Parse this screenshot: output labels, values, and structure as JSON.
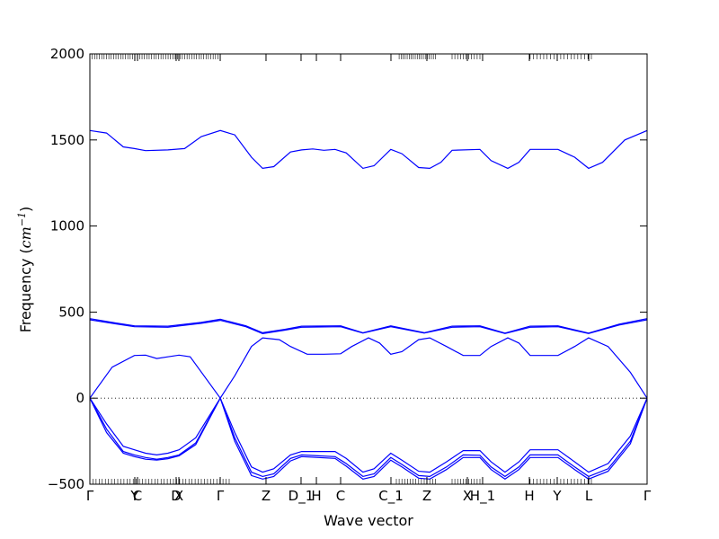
{
  "chart_data": {
    "type": "line",
    "xlabel": "Wave vector",
    "ylabel_text": "Frequency (",
    "ylabel_unit": "cm",
    "ylabel_exp": "−1",
    "ylabel_close": ")",
    "ylim": [
      -500,
      2000
    ],
    "y_ticks": [
      -500,
      0,
      500,
      1000,
      1500,
      2000
    ],
    "y_tick_labels": [
      "−500",
      "0",
      "500",
      "1000",
      "1500",
      "2000"
    ],
    "x_ticks": [
      {
        "label": "Γ",
        "pos": 0.0
      },
      {
        "label": "Y",
        "pos": 0.0806
      },
      {
        "label": "C",
        "pos": 0.0855
      },
      {
        "label": "D",
        "pos": 0.1548
      },
      {
        "label": "X",
        "pos": 0.1597
      },
      {
        "label": "Γ",
        "pos": 0.2339
      },
      {
        "label": "Z",
        "pos": 0.3161
      },
      {
        "label": "D_1",
        "pos": 0.379
      },
      {
        "label": "H",
        "pos": 0.4065
      },
      {
        "label": "C",
        "pos": 0.45
      },
      {
        "label": "C_1",
        "pos": 0.5403
      },
      {
        "label": "Z",
        "pos": 0.6048
      },
      {
        "label": "X",
        "pos": 0.6774
      },
      {
        "label": "H_1",
        "pos": 0.7048
      },
      {
        "label": "H",
        "pos": 0.7887
      },
      {
        "label": "Y",
        "pos": 0.8387
      },
      {
        "label": "L",
        "pos": 0.8952
      },
      {
        "label": "Γ",
        "pos": 1.0
      }
    ],
    "zero_line": 0,
    "series": [
      {
        "points": [
          [
            0,
            1555
          ],
          [
            0.03,
            1540
          ],
          [
            0.06,
            1460
          ],
          [
            0.08,
            1450
          ],
          [
            0.1,
            1438
          ],
          [
            0.14,
            1442
          ],
          [
            0.17,
            1450
          ],
          [
            0.2,
            1520
          ],
          [
            0.234,
            1555
          ],
          [
            0.26,
            1530
          ],
          [
            0.29,
            1400
          ],
          [
            0.31,
            1335
          ],
          [
            0.33,
            1345
          ],
          [
            0.36,
            1430
          ],
          [
            0.38,
            1442
          ],
          [
            0.4,
            1448
          ],
          [
            0.42,
            1440
          ],
          [
            0.44,
            1445
          ],
          [
            0.46,
            1425
          ],
          [
            0.49,
            1335
          ],
          [
            0.51,
            1350
          ],
          [
            0.54,
            1445
          ],
          [
            0.56,
            1420
          ],
          [
            0.59,
            1340
          ],
          [
            0.61,
            1335
          ],
          [
            0.63,
            1370
          ],
          [
            0.65,
            1440
          ],
          [
            0.7,
            1445
          ],
          [
            0.72,
            1380
          ],
          [
            0.75,
            1335
          ],
          [
            0.77,
            1370
          ],
          [
            0.79,
            1445
          ],
          [
            0.84,
            1445
          ],
          [
            0.87,
            1400
          ],
          [
            0.895,
            1335
          ],
          [
            0.92,
            1370
          ],
          [
            0.96,
            1500
          ],
          [
            1.0,
            1555
          ]
        ]
      },
      {
        "points": [
          [
            0,
            462
          ],
          [
            0.04,
            440
          ],
          [
            0.08,
            420
          ],
          [
            0.14,
            418
          ],
          [
            0.2,
            440
          ],
          [
            0.234,
            458
          ],
          [
            0.28,
            420
          ],
          [
            0.31,
            380
          ],
          [
            0.35,
            400
          ],
          [
            0.38,
            418
          ],
          [
            0.45,
            420
          ],
          [
            0.49,
            380
          ],
          [
            0.54,
            420
          ],
          [
            0.6,
            380
          ],
          [
            0.65,
            418
          ],
          [
            0.7,
            420
          ],
          [
            0.745,
            378
          ],
          [
            0.79,
            418
          ],
          [
            0.84,
            420
          ],
          [
            0.895,
            378
          ],
          [
            0.95,
            430
          ],
          [
            1.0,
            462
          ]
        ]
      },
      {
        "points": [
          [
            0,
            455
          ],
          [
            0.04,
            435
          ],
          [
            0.08,
            415
          ],
          [
            0.14,
            412
          ],
          [
            0.2,
            435
          ],
          [
            0.234,
            452
          ],
          [
            0.28,
            415
          ],
          [
            0.31,
            375
          ],
          [
            0.35,
            395
          ],
          [
            0.38,
            412
          ],
          [
            0.45,
            415
          ],
          [
            0.49,
            378
          ],
          [
            0.54,
            415
          ],
          [
            0.6,
            378
          ],
          [
            0.65,
            412
          ],
          [
            0.7,
            415
          ],
          [
            0.745,
            376
          ],
          [
            0.79,
            412
          ],
          [
            0.84,
            415
          ],
          [
            0.895,
            376
          ],
          [
            0.95,
            425
          ],
          [
            1.0,
            455
          ]
        ]
      },
      {
        "points": [
          [
            0,
            0
          ],
          [
            0.04,
            180
          ],
          [
            0.08,
            248
          ],
          [
            0.1,
            250
          ],
          [
            0.12,
            230
          ],
          [
            0.14,
            240
          ],
          [
            0.16,
            250
          ],
          [
            0.18,
            240
          ],
          [
            0.234,
            0
          ],
          [
            0.26,
            130
          ],
          [
            0.29,
            300
          ],
          [
            0.31,
            350
          ],
          [
            0.34,
            340
          ],
          [
            0.36,
            300
          ],
          [
            0.39,
            255
          ],
          [
            0.42,
            255
          ],
          [
            0.45,
            258
          ],
          [
            0.47,
            300
          ],
          [
            0.5,
            350
          ],
          [
            0.52,
            320
          ],
          [
            0.54,
            255
          ],
          [
            0.56,
            270
          ],
          [
            0.59,
            340
          ],
          [
            0.61,
            350
          ],
          [
            0.64,
            300
          ],
          [
            0.67,
            248
          ],
          [
            0.7,
            248
          ],
          [
            0.72,
            300
          ],
          [
            0.75,
            350
          ],
          [
            0.77,
            320
          ],
          [
            0.79,
            248
          ],
          [
            0.84,
            248
          ],
          [
            0.87,
            300
          ],
          [
            0.895,
            350
          ],
          [
            0.93,
            300
          ],
          [
            0.97,
            150
          ],
          [
            1.0,
            0
          ]
        ]
      },
      {
        "points": [
          [
            0,
            0
          ],
          [
            0.03,
            -150
          ],
          [
            0.06,
            -280
          ],
          [
            0.08,
            -300
          ],
          [
            0.1,
            -320
          ],
          [
            0.12,
            -330
          ],
          [
            0.14,
            -320
          ],
          [
            0.16,
            -300
          ],
          [
            0.19,
            -230
          ],
          [
            0.234,
            0
          ],
          [
            0.26,
            -200
          ],
          [
            0.29,
            -400
          ],
          [
            0.31,
            -430
          ],
          [
            0.33,
            -410
          ],
          [
            0.36,
            -330
          ],
          [
            0.38,
            -310
          ],
          [
            0.41,
            -310
          ],
          [
            0.44,
            -310
          ],
          [
            0.46,
            -350
          ],
          [
            0.49,
            -430
          ],
          [
            0.51,
            -410
          ],
          [
            0.54,
            -320
          ],
          [
            0.56,
            -360
          ],
          [
            0.59,
            -425
          ],
          [
            0.61,
            -430
          ],
          [
            0.64,
            -370
          ],
          [
            0.67,
            -305
          ],
          [
            0.7,
            -305
          ],
          [
            0.72,
            -370
          ],
          [
            0.745,
            -430
          ],
          [
            0.77,
            -370
          ],
          [
            0.79,
            -300
          ],
          [
            0.84,
            -300
          ],
          [
            0.87,
            -370
          ],
          [
            0.895,
            -430
          ],
          [
            0.93,
            -380
          ],
          [
            0.97,
            -220
          ],
          [
            1.0,
            0
          ]
        ]
      },
      {
        "points": [
          [
            0,
            0
          ],
          [
            0.03,
            -180
          ],
          [
            0.06,
            -310
          ],
          [
            0.08,
            -330
          ],
          [
            0.1,
            -345
          ],
          [
            0.12,
            -355
          ],
          [
            0.14,
            -345
          ],
          [
            0.16,
            -330
          ],
          [
            0.19,
            -260
          ],
          [
            0.234,
            0
          ],
          [
            0.26,
            -230
          ],
          [
            0.29,
            -430
          ],
          [
            0.31,
            -455
          ],
          [
            0.33,
            -440
          ],
          [
            0.36,
            -350
          ],
          [
            0.38,
            -330
          ],
          [
            0.41,
            -335
          ],
          [
            0.44,
            -340
          ],
          [
            0.46,
            -380
          ],
          [
            0.49,
            -455
          ],
          [
            0.51,
            -440
          ],
          [
            0.54,
            -345
          ],
          [
            0.56,
            -385
          ],
          [
            0.59,
            -450
          ],
          [
            0.61,
            -455
          ],
          [
            0.64,
            -400
          ],
          [
            0.67,
            -330
          ],
          [
            0.7,
            -332
          ],
          [
            0.72,
            -400
          ],
          [
            0.745,
            -455
          ],
          [
            0.77,
            -400
          ],
          [
            0.79,
            -330
          ],
          [
            0.84,
            -330
          ],
          [
            0.87,
            -400
          ],
          [
            0.895,
            -455
          ],
          [
            0.93,
            -410
          ],
          [
            0.97,
            -250
          ],
          [
            1.0,
            0
          ]
        ]
      },
      {
        "points": [
          [
            0,
            0
          ],
          [
            0.03,
            -200
          ],
          [
            0.06,
            -320
          ],
          [
            0.08,
            -340
          ],
          [
            0.1,
            -355
          ],
          [
            0.12,
            -360
          ],
          [
            0.14,
            -352
          ],
          [
            0.16,
            -335
          ],
          [
            0.19,
            -270
          ],
          [
            0.234,
            0
          ],
          [
            0.26,
            -250
          ],
          [
            0.29,
            -450
          ],
          [
            0.31,
            -470
          ],
          [
            0.33,
            -455
          ],
          [
            0.36,
            -365
          ],
          [
            0.38,
            -340
          ],
          [
            0.41,
            -345
          ],
          [
            0.44,
            -350
          ],
          [
            0.46,
            -395
          ],
          [
            0.49,
            -470
          ],
          [
            0.51,
            -455
          ],
          [
            0.54,
            -360
          ],
          [
            0.56,
            -400
          ],
          [
            0.59,
            -465
          ],
          [
            0.61,
            -470
          ],
          [
            0.64,
            -415
          ],
          [
            0.67,
            -345
          ],
          [
            0.7,
            -345
          ],
          [
            0.72,
            -415
          ],
          [
            0.745,
            -470
          ],
          [
            0.77,
            -415
          ],
          [
            0.79,
            -345
          ],
          [
            0.84,
            -345
          ],
          [
            0.87,
            -415
          ],
          [
            0.895,
            -470
          ],
          [
            0.93,
            -425
          ],
          [
            0.97,
            -265
          ],
          [
            1.0,
            0
          ]
        ]
      }
    ]
  }
}
